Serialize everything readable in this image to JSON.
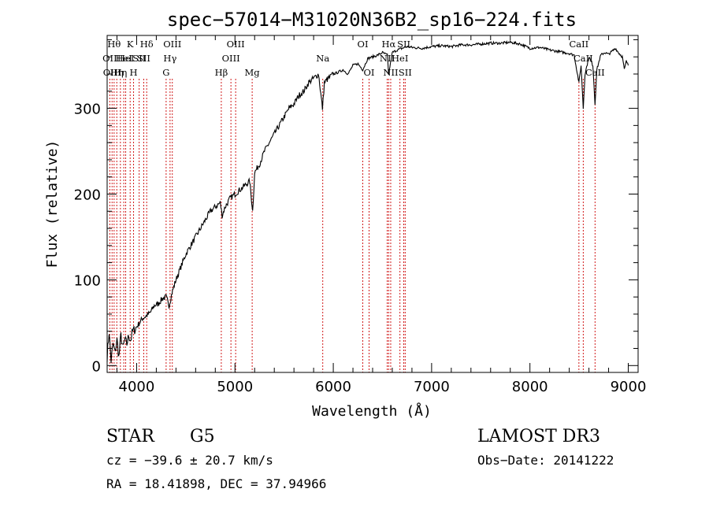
{
  "colors": {
    "spectrum": "#000000",
    "line_marker": "#cc0000",
    "axis": "#000000",
    "background": "#ffffff"
  },
  "chart_data": {
    "type": "line",
    "title": "spec−57014−M31020N36B2_sp16−224.fits",
    "xlabel": "Wavelength (Å)",
    "ylabel": "Flux (relative)",
    "xlim": [
      3700,
      9100
    ],
    "ylim": [
      -8,
      385
    ],
    "x_ticks": [
      4000,
      5000,
      6000,
      7000,
      8000,
      9000
    ],
    "x_tick_labels": [
      "4000",
      "5000",
      "6000",
      "7000",
      "8000",
      "9000"
    ],
    "y_ticks": [
      0,
      100,
      200,
      300
    ],
    "y_tick_labels": [
      "0",
      "100",
      "200",
      "300"
    ],
    "series": [
      {
        "name": "flux",
        "x": [
          3700,
          3720,
          3740,
          3760,
          3780,
          3800,
          3820,
          3840,
          3860,
          3880,
          3900,
          3920,
          3940,
          3960,
          3980,
          4000,
          4030,
          4060,
          4100,
          4140,
          4180,
          4220,
          4260,
          4300,
          4330,
          4360,
          4400,
          4450,
          4500,
          4550,
          4600,
          4650,
          4700,
          4750,
          4800,
          4850,
          4870,
          4900,
          4950,
          5000,
          5050,
          5100,
          5150,
          5180,
          5200,
          5250,
          5300,
          5350,
          5400,
          5450,
          5500,
          5550,
          5600,
          5650,
          5700,
          5750,
          5800,
          5850,
          5890,
          5910,
          5950,
          6000,
          6050,
          6100,
          6150,
          6200,
          6250,
          6300,
          6350,
          6400,
          6450,
          6500,
          6550,
          6563,
          6600,
          6650,
          6700,
          6750,
          6800,
          6900,
          7000,
          7100,
          7200,
          7300,
          7400,
          7500,
          7600,
          7700,
          7800,
          7900,
          8000,
          8100,
          8200,
          8300,
          8400,
          8450,
          8498,
          8520,
          8542,
          8560,
          8600,
          8640,
          8662,
          8680,
          8720,
          8760,
          8800,
          8840,
          8870,
          8900,
          8940,
          8960,
          8980,
          9000
        ],
        "values": [
          10,
          40,
          5,
          25,
          15,
          30,
          10,
          35,
          20,
          30,
          25,
          35,
          30,
          40,
          42,
          45,
          50,
          55,
          58,
          62,
          70,
          72,
          78,
          80,
          70,
          85,
          100,
          115,
          130,
          140,
          150,
          160,
          170,
          180,
          185,
          190,
          175,
          185,
          195,
          200,
          205,
          210,
          215,
          180,
          225,
          235,
          250,
          260,
          270,
          280,
          290,
          300,
          305,
          315,
          320,
          330,
          335,
          340,
          300,
          330,
          335,
          340,
          342,
          345,
          340,
          350,
          352,
          345,
          358,
          360,
          362,
          365,
          362,
          340,
          365,
          368,
          370,
          372,
          371,
          370,
          372,
          373,
          372,
          374,
          374,
          375,
          376,
          376,
          377,
          375,
          370,
          371,
          368,
          366,
          364,
          362,
          330,
          350,
          300,
          340,
          360,
          350,
          305,
          345,
          362,
          365,
          363,
          367,
          370,
          365,
          360,
          345,
          355,
          350
        ]
      }
    ],
    "line_markers": [
      {
        "wavelength": 3727,
        "label": "OII",
        "row": 1
      },
      {
        "wavelength": 3750,
        "label": "OIII",
        "row": 2
      },
      {
        "wavelength": 3771,
        "label": "Hθ",
        "row": 0
      },
      {
        "wavelength": 3798,
        "label": "Hη",
        "row": 2
      },
      {
        "wavelength": 3835,
        "label": "Hη",
        "row": 2
      },
      {
        "wavelength": 3869,
        "label": "HeI",
        "row": 1
      },
      {
        "wavelength": 3889,
        "label": "HeI",
        "row": 1
      },
      {
        "wavelength": 3934,
        "label": "K",
        "row": 0
      },
      {
        "wavelength": 3969,
        "label": "H",
        "row": 2
      },
      {
        "wavelength": 4026,
        "label": "SII",
        "row": 1
      },
      {
        "wavelength": 4072,
        "label": "SII",
        "row": 1
      },
      {
        "wavelength": 4102,
        "label": "Hδ",
        "row": 0
      },
      {
        "wavelength": 4300,
        "label": "G",
        "row": 2
      },
      {
        "wavelength": 4340,
        "label": "Hγ",
        "row": 1
      },
      {
        "wavelength": 4363,
        "label": "OIII",
        "row": 0
      },
      {
        "wavelength": 4861,
        "label": "Hβ",
        "row": 2
      },
      {
        "wavelength": 4959,
        "label": "OIII",
        "row": 1
      },
      {
        "wavelength": 5007,
        "label": "OIII",
        "row": 0
      },
      {
        "wavelength": 5175,
        "label": "Mg",
        "row": 2
      },
      {
        "wavelength": 5893,
        "label": "Na",
        "row": 1
      },
      {
        "wavelength": 6300,
        "label": "OI",
        "row": 0
      },
      {
        "wavelength": 6364,
        "label": "OI",
        "row": 2
      },
      {
        "wavelength": 6548,
        "label": "NII",
        "row": 1
      },
      {
        "wavelength": 6563,
        "label": "Hα",
        "row": 0
      },
      {
        "wavelength": 6584,
        "label": "NII",
        "row": 2
      },
      {
        "wavelength": 6678,
        "label": "HeI",
        "row": 1
      },
      {
        "wavelength": 6717,
        "label": "SII",
        "row": 0
      },
      {
        "wavelength": 6731,
        "label": "SII",
        "row": 2
      },
      {
        "wavelength": 8498,
        "label": "CaII",
        "row": 0
      },
      {
        "wavelength": 8542,
        "label": "CaII",
        "row": 1
      },
      {
        "wavelength": 8662,
        "label": "CaII",
        "row": 2
      }
    ]
  },
  "footer": {
    "object_class": "STAR",
    "subclass": "G5",
    "survey": "LAMOST DR3",
    "redshift": "cz = −39.6 ± 20.7 km/s",
    "obs_date": "Obs−Date: 20141222",
    "coords": "RA =  18.41898, DEC =  37.94966"
  }
}
